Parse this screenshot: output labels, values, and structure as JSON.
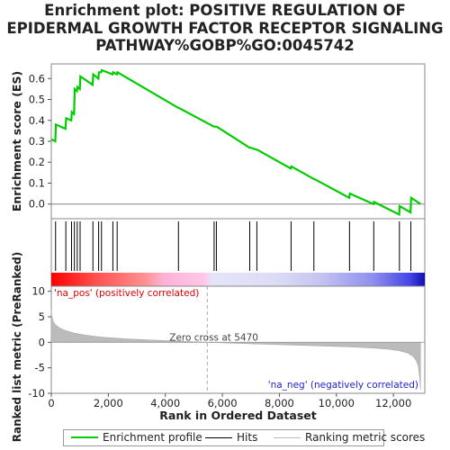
{
  "title_lines": [
    "Enrichment plot: POSITIVE REGULATION OF",
    "EPIDERMAL GROWTH FACTOR RECEPTOR SIGNALING",
    "PATHWAY%GOBP%GO:0045742"
  ],
  "legend": {
    "items": [
      {
        "label": "Enrichment profile",
        "color": "#00cc00"
      },
      {
        "label": "Hits",
        "color": "#000000"
      },
      {
        "label": "Ranking metric scores",
        "color": "#bbbbbb"
      }
    ]
  },
  "chart_data": [
    {
      "type": "line",
      "panel": "enrichment",
      "ylabel": "Enrichment score (ES)",
      "ylim": [
        -0.07,
        0.67
      ],
      "y_ticks": [
        0.0,
        0.1,
        0.2,
        0.3,
        0.4,
        0.5,
        0.6
      ],
      "xlim": [
        0,
        13100
      ],
      "grid": false,
      "line_color": "#00cc00",
      "series": [
        {
          "x": [
            0,
            140,
            160,
            500,
            520,
            700,
            720,
            800,
            820,
            900,
            920,
            1000,
            1020,
            1450,
            1470,
            1650,
            1670,
            1750,
            1770,
            2150,
            2170,
            2300,
            2320,
            4450,
            4470,
            5700,
            5720,
            5780,
            5800,
            6950,
            6970,
            7200,
            7220,
            8400,
            8420,
            9200,
            9220,
            10450,
            10470,
            11300,
            11320,
            12200,
            12220,
            12600,
            12620,
            12950
          ],
          "y": [
            0.31,
            0.3,
            0.38,
            0.36,
            0.41,
            0.4,
            0.44,
            0.43,
            0.55,
            0.54,
            0.56,
            0.55,
            0.61,
            0.57,
            0.62,
            0.6,
            0.63,
            0.63,
            0.64,
            0.62,
            0.63,
            0.62,
            0.63,
            0.46,
            0.46,
            0.37,
            0.37,
            0.37,
            0.37,
            0.27,
            0.27,
            0.26,
            0.26,
            0.17,
            0.18,
            0.12,
            0.12,
            0.03,
            0.05,
            0.0,
            0.01,
            -0.05,
            -0.01,
            -0.04,
            0.03,
            0.0
          ]
        }
      ]
    },
    {
      "type": "scatter",
      "panel": "hits",
      "xlim": [
        0,
        13100
      ],
      "hit_positions": [
        150,
        510,
        710,
        810,
        910,
        1010,
        1460,
        1660,
        1760,
        2160,
        2310,
        4460,
        5710,
        5790,
        6960,
        7210,
        8410,
        9210,
        10460,
        11310,
        12210,
        12610
      ]
    },
    {
      "type": "area",
      "panel": "ranked_metric",
      "ylabel": "Ranked list metric (PreRanked)",
      "xlabel": "Rank in Ordered Dataset",
      "ylim": [
        -10,
        11
      ],
      "y_ticks": [
        -10,
        -5,
        0,
        5,
        10
      ],
      "xlim": [
        0,
        13100
      ],
      "x_ticks": [
        0,
        2000,
        4000,
        6000,
        8000,
        10000,
        12000
      ],
      "x_tick_labels": [
        "0",
        "2,000",
        "4,000",
        "6,000",
        "8,000",
        "10,000",
        "12,000"
      ],
      "zero_cross": 5470,
      "zero_cross_label": "Zero cross at 5470",
      "pos_label": "'na_pos' (positively correlated)",
      "neg_label": "'na_neg' (negatively correlated)",
      "x": [
        0,
        20,
        60,
        150,
        300,
        500,
        800,
        1200,
        1800,
        2600,
        3500,
        4500,
        5470,
        6500,
        7500,
        8500,
        9500,
        10500,
        11200,
        11800,
        12200,
        12500,
        12700,
        12800,
        12870,
        12920,
        12950
      ],
      "y": [
        6.4,
        5.2,
        4.2,
        3.4,
        2.8,
        2.3,
        1.8,
        1.4,
        1.0,
        0.7,
        0.45,
        0.22,
        0.0,
        -0.2,
        -0.38,
        -0.55,
        -0.72,
        -0.92,
        -1.1,
        -1.35,
        -1.65,
        -2.1,
        -2.8,
        -3.6,
        -4.6,
        -7.0,
        -9.3
      ]
    }
  ]
}
